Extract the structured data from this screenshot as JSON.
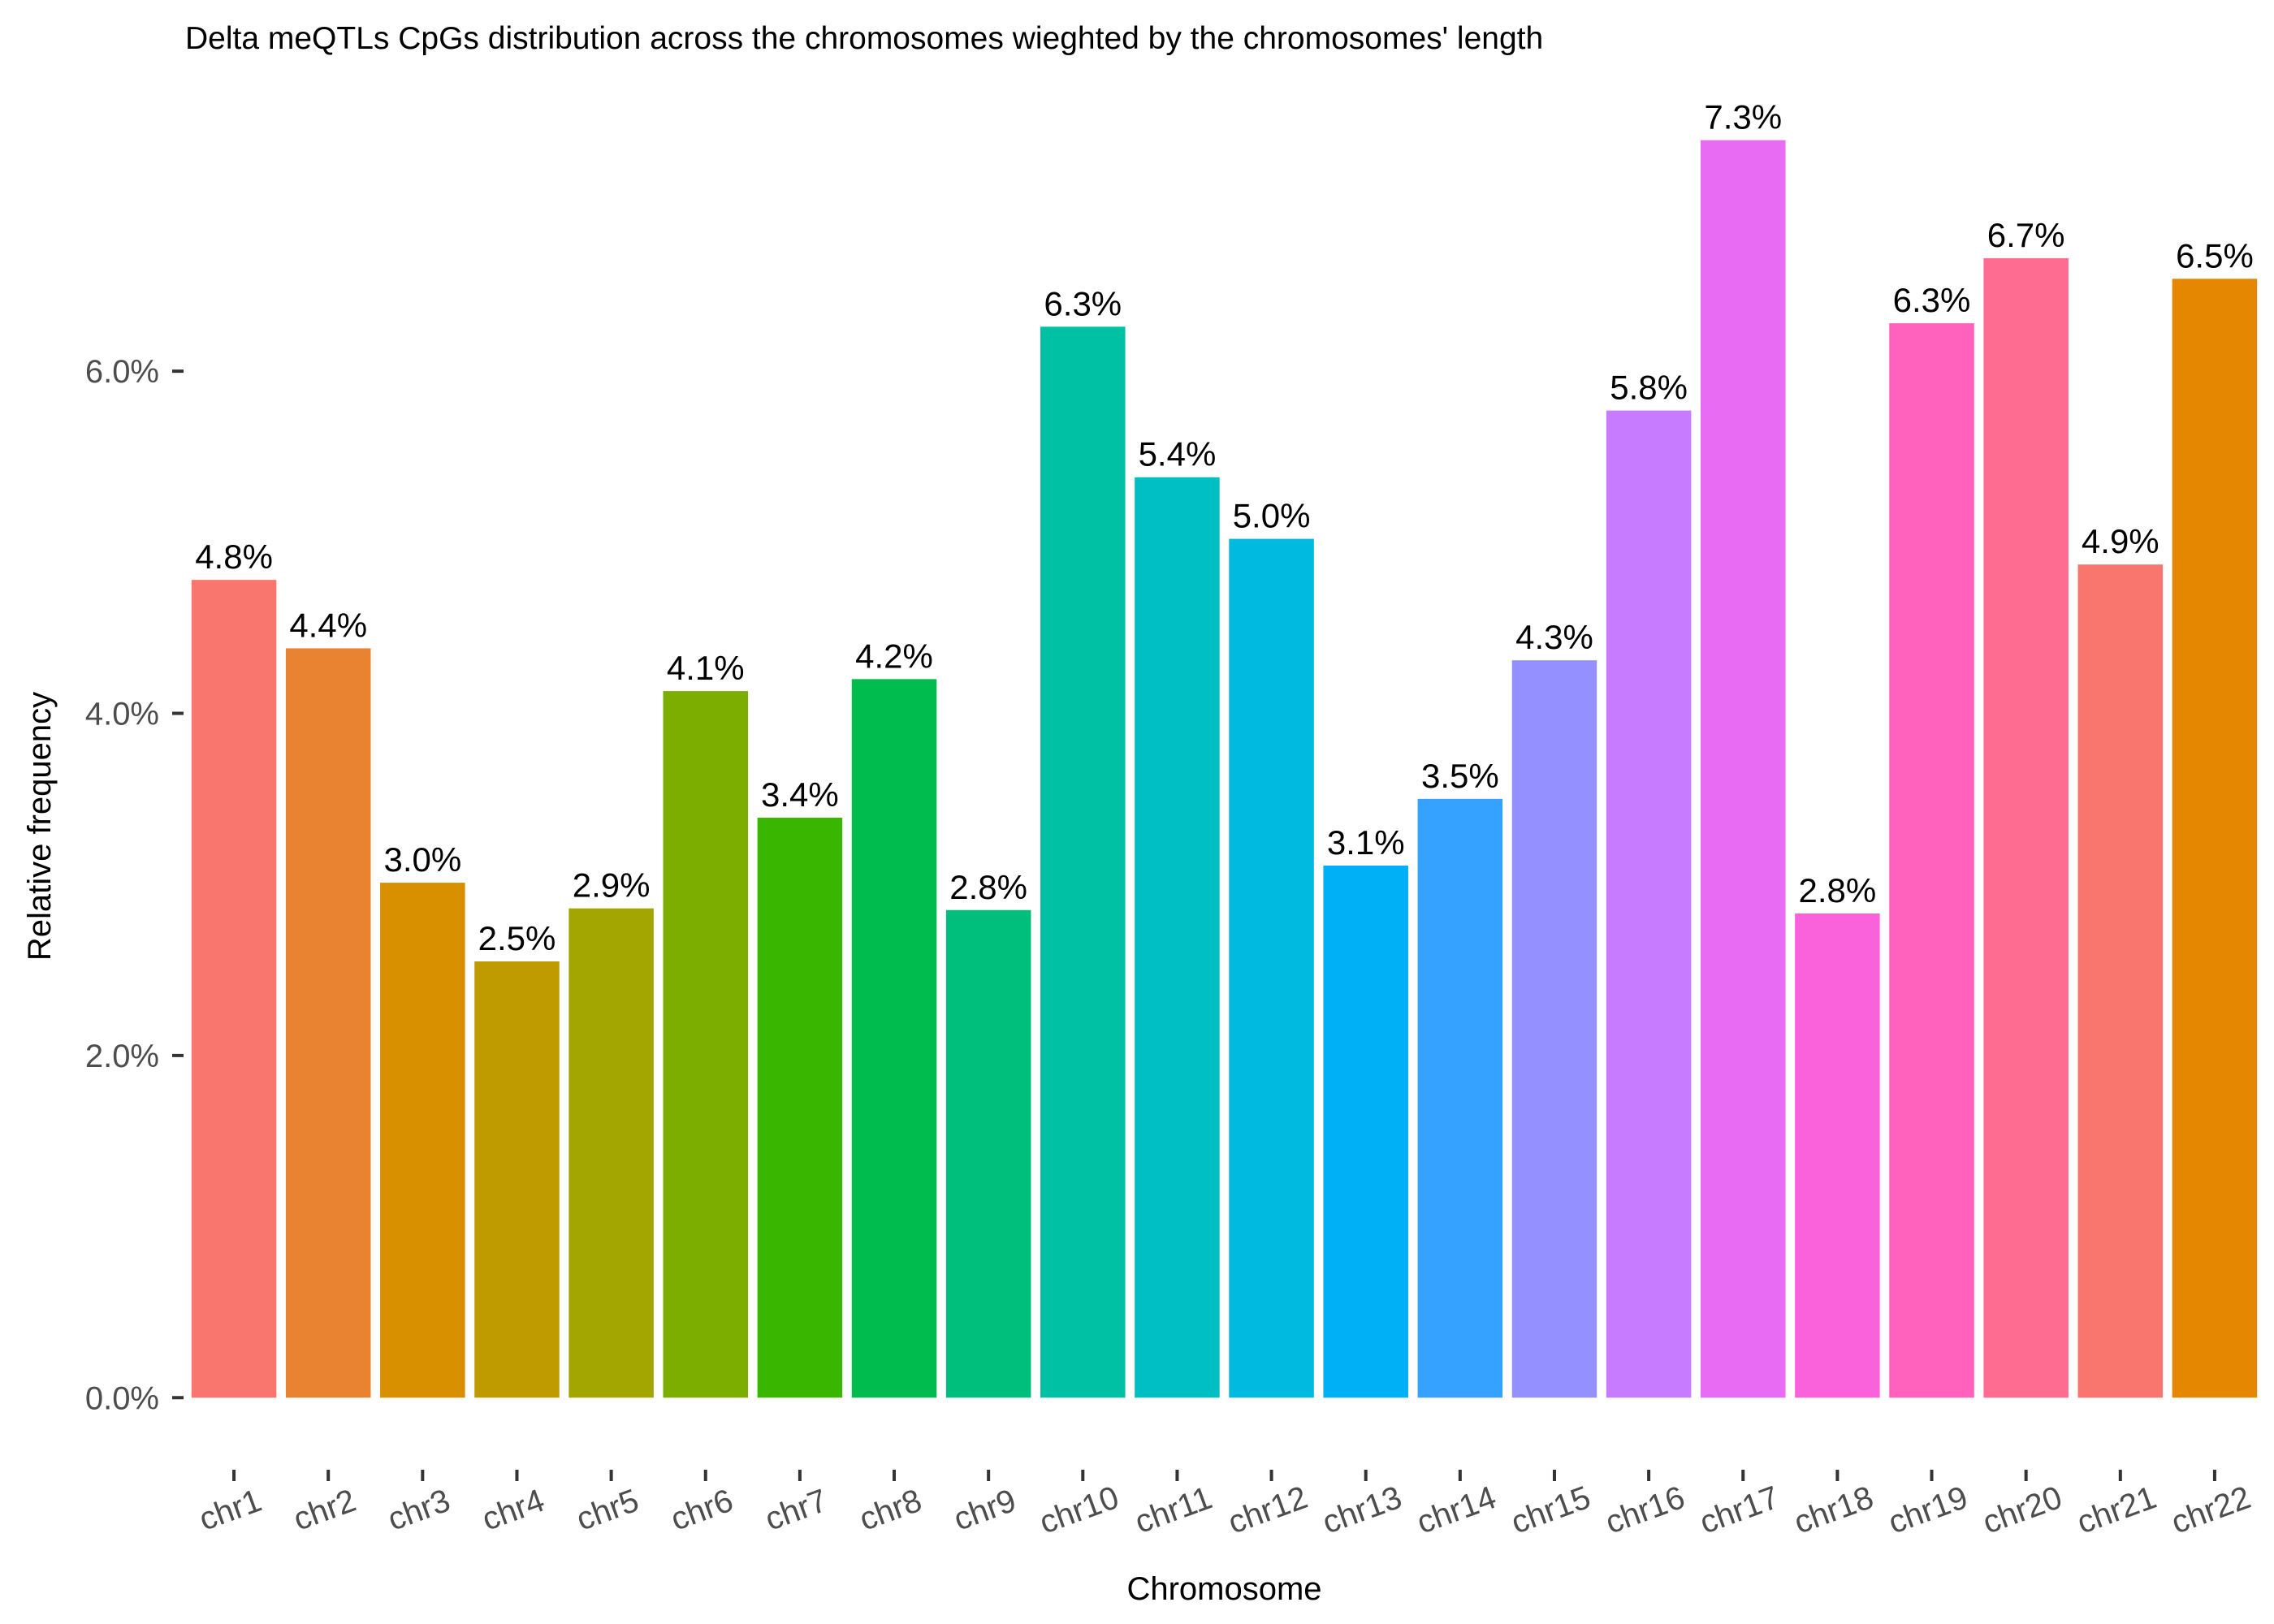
{
  "chart_data": {
    "type": "bar",
    "title": "Delta meQTLs CpGs distribution across the chromosomes wieghted by the chromosomes' length",
    "xlabel": "Chromosome",
    "ylabel": "Relative frequency",
    "categories": [
      "chr1",
      "chr2",
      "chr3",
      "chr4",
      "chr5",
      "chr6",
      "chr7",
      "chr8",
      "chr9",
      "chr10",
      "chr11",
      "chr12",
      "chr13",
      "chr14",
      "chr15",
      "chr16",
      "chr17",
      "chr18",
      "chr19",
      "chr20",
      "chr21",
      "chr22"
    ],
    "values": [
      4.78,
      4.38,
      3.01,
      2.55,
      2.86,
      4.13,
      3.39,
      4.2,
      2.85,
      6.26,
      5.38,
      5.02,
      3.11,
      3.5,
      4.31,
      5.77,
      7.35,
      2.83,
      6.28,
      6.66,
      4.87,
      6.54
    ],
    "data_labels": [
      "4.8%",
      "4.4%",
      "3.0%",
      "2.5%",
      "2.9%",
      "4.1%",
      "3.4%",
      "4.2%",
      "2.8%",
      "6.3%",
      "5.4%",
      "5.0%",
      "3.1%",
      "3.5%",
      "4.3%",
      "5.8%",
      "7.3%",
      "2.8%",
      "6.3%",
      "6.7%",
      "4.9%",
      "6.5%"
    ],
    "colors": [
      "#F8766D",
      "#EA8331",
      "#D89000",
      "#C09B00",
      "#A3A500",
      "#7CAE00",
      "#39B600",
      "#00BB4E",
      "#00BF7D",
      "#00C1A3",
      "#00BFC4",
      "#00BAE0",
      "#00B0F6",
      "#35A2FF",
      "#9590FF",
      "#C77CFF",
      "#E76BF3",
      "#FA62DB",
      "#FF62BC",
      "#FF6C91",
      "#F8766D",
      "#E58700"
    ],
    "ylim": [
      -0.35,
      7.6
    ],
    "y_ticks": [
      0,
      2,
      4,
      6
    ],
    "y_tick_labels": [
      "0.0%",
      "2.0%",
      "4.0%",
      "6.0%"
    ],
    "grid": false,
    "legend": "none"
  }
}
